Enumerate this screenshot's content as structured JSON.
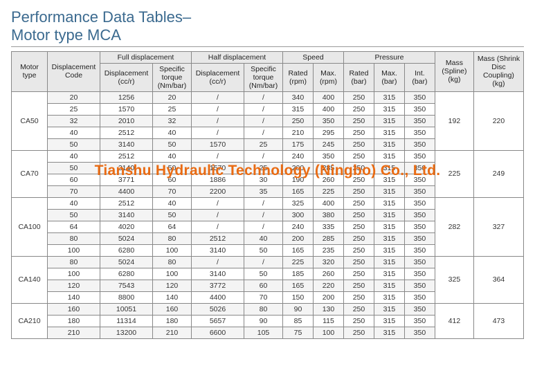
{
  "title_line1": "Performance Data Tables–",
  "title_line2": "Motor type MCA",
  "watermark": "Tianshu Hydraulic Technology (Ningbo) Co., Ltd.",
  "headers": {
    "motor_type": "Motor type",
    "disp_code": "Displacement Code",
    "full_disp_group": "Full displacement",
    "half_disp_group": "Half displacement",
    "speed_group": "Speed",
    "pressure_group": "Pressure",
    "mass_spline": "Mass (Spline) (kg)",
    "mass_shrink": "Mass (Shrink Disc Coupling) (kg)",
    "disp_ccr": "Displacement (cc/r)",
    "spec_torque": "Specific torque (Nm/bar)",
    "rated_rpm": "Rated (rpm)",
    "max_rpm": "Max. (rpm)",
    "rated_bar": "Rated (bar)",
    "max_bar": "Max. (bar)",
    "int_bar": "Int. (bar)"
  },
  "groups": [
    {
      "motor": "CA50",
      "mass_spline": "192",
      "mass_shrink": "220",
      "rows": [
        {
          "code": "20",
          "fd": "1256",
          "ft": "20",
          "hd": "/",
          "ht": "/",
          "rr": "340",
          "mr": "400",
          "rb": "250",
          "mb": "315",
          "ib": "350"
        },
        {
          "code": "25",
          "fd": "1570",
          "ft": "25",
          "hd": "/",
          "ht": "/",
          "rr": "315",
          "mr": "400",
          "rb": "250",
          "mb": "315",
          "ib": "350"
        },
        {
          "code": "32",
          "fd": "2010",
          "ft": "32",
          "hd": "/",
          "ht": "/",
          "rr": "250",
          "mr": "350",
          "rb": "250",
          "mb": "315",
          "ib": "350"
        },
        {
          "code": "40",
          "fd": "2512",
          "ft": "40",
          "hd": "/",
          "ht": "/",
          "rr": "210",
          "mr": "295",
          "rb": "250",
          "mb": "315",
          "ib": "350"
        },
        {
          "code": "50",
          "fd": "3140",
          "ft": "50",
          "hd": "1570",
          "ht": "25",
          "rr": "175",
          "mr": "245",
          "rb": "250",
          "mb": "315",
          "ib": "350"
        }
      ]
    },
    {
      "motor": "CA70",
      "mass_spline": "225",
      "mass_shrink": "249",
      "rows": [
        {
          "code": "40",
          "fd": "2512",
          "ft": "40",
          "hd": "/",
          "ht": "/",
          "rr": "240",
          "mr": "350",
          "rb": "250",
          "mb": "315",
          "ib": "350"
        },
        {
          "code": "50",
          "fd": "3140",
          "ft": "50",
          "hd": "1570",
          "ht": "25",
          "rr": "200",
          "mr": "285",
          "rb": "250",
          "mb": "315",
          "ib": "350"
        },
        {
          "code": "60",
          "fd": "3771",
          "ft": "60",
          "hd": "1886",
          "ht": "30",
          "rr": "190",
          "mr": "260",
          "rb": "250",
          "mb": "315",
          "ib": "350"
        },
        {
          "code": "70",
          "fd": "4400",
          "ft": "70",
          "hd": "2200",
          "ht": "35",
          "rr": "165",
          "mr": "225",
          "rb": "250",
          "mb": "315",
          "ib": "350"
        }
      ]
    },
    {
      "motor": "CA100",
      "mass_spline": "282",
      "mass_shrink": "327",
      "rows": [
        {
          "code": "40",
          "fd": "2512",
          "ft": "40",
          "hd": "/",
          "ht": "/",
          "rr": "325",
          "mr": "400",
          "rb": "250",
          "mb": "315",
          "ib": "350"
        },
        {
          "code": "50",
          "fd": "3140",
          "ft": "50",
          "hd": "/",
          "ht": "/",
          "rr": "300",
          "mr": "380",
          "rb": "250",
          "mb": "315",
          "ib": "350"
        },
        {
          "code": "64",
          "fd": "4020",
          "ft": "64",
          "hd": "/",
          "ht": "/",
          "rr": "240",
          "mr": "335",
          "rb": "250",
          "mb": "315",
          "ib": "350"
        },
        {
          "code": "80",
          "fd": "5024",
          "ft": "80",
          "hd": "2512",
          "ht": "40",
          "rr": "200",
          "mr": "285",
          "rb": "250",
          "mb": "315",
          "ib": "350"
        },
        {
          "code": "100",
          "fd": "6280",
          "ft": "100",
          "hd": "3140",
          "ht": "50",
          "rr": "165",
          "mr": "235",
          "rb": "250",
          "mb": "315",
          "ib": "350"
        }
      ]
    },
    {
      "motor": "CA140",
      "mass_spline": "325",
      "mass_shrink": "364",
      "rows": [
        {
          "code": "80",
          "fd": "5024",
          "ft": "80",
          "hd": "/",
          "ht": "/",
          "rr": "225",
          "mr": "320",
          "rb": "250",
          "mb": "315",
          "ib": "350"
        },
        {
          "code": "100",
          "fd": "6280",
          "ft": "100",
          "hd": "3140",
          "ht": "50",
          "rr": "185",
          "mr": "260",
          "rb": "250",
          "mb": "315",
          "ib": "350"
        },
        {
          "code": "120",
          "fd": "7543",
          "ft": "120",
          "hd": "3772",
          "ht": "60",
          "rr": "165",
          "mr": "220",
          "rb": "250",
          "mb": "315",
          "ib": "350"
        },
        {
          "code": "140",
          "fd": "8800",
          "ft": "140",
          "hd": "4400",
          "ht": "70",
          "rr": "150",
          "mr": "200",
          "rb": "250",
          "mb": "315",
          "ib": "350"
        }
      ]
    },
    {
      "motor": "CA210",
      "mass_spline": "412",
      "mass_shrink": "473",
      "rows": [
        {
          "code": "160",
          "fd": "10051",
          "ft": "160",
          "hd": "5026",
          "ht": "80",
          "rr": "90",
          "mr": "130",
          "rb": "250",
          "mb": "315",
          "ib": "350"
        },
        {
          "code": "180",
          "fd": "11314",
          "ft": "180",
          "hd": "5657",
          "ht": "90",
          "rr": "85",
          "mr": "115",
          "rb": "250",
          "mb": "315",
          "ib": "350"
        },
        {
          "code": "210",
          "fd": "13200",
          "ft": "210",
          "hd": "6600",
          "ht": "105",
          "rr": "75",
          "mr": "100",
          "rb": "250",
          "mb": "315",
          "ib": "350"
        }
      ]
    }
  ],
  "col_widths_pct": [
    6.5,
    9,
    9,
    7,
    9,
    7,
    5.5,
    5.5,
    5.5,
    5.5,
    5.5,
    7,
    9
  ],
  "colors": {
    "title": "#3b6a8f",
    "header_bg": "#e8e8e8",
    "row_even": "#f4f4f4",
    "row_odd": "#ffffff",
    "border": "#888888",
    "watermark": "#e96b13"
  }
}
